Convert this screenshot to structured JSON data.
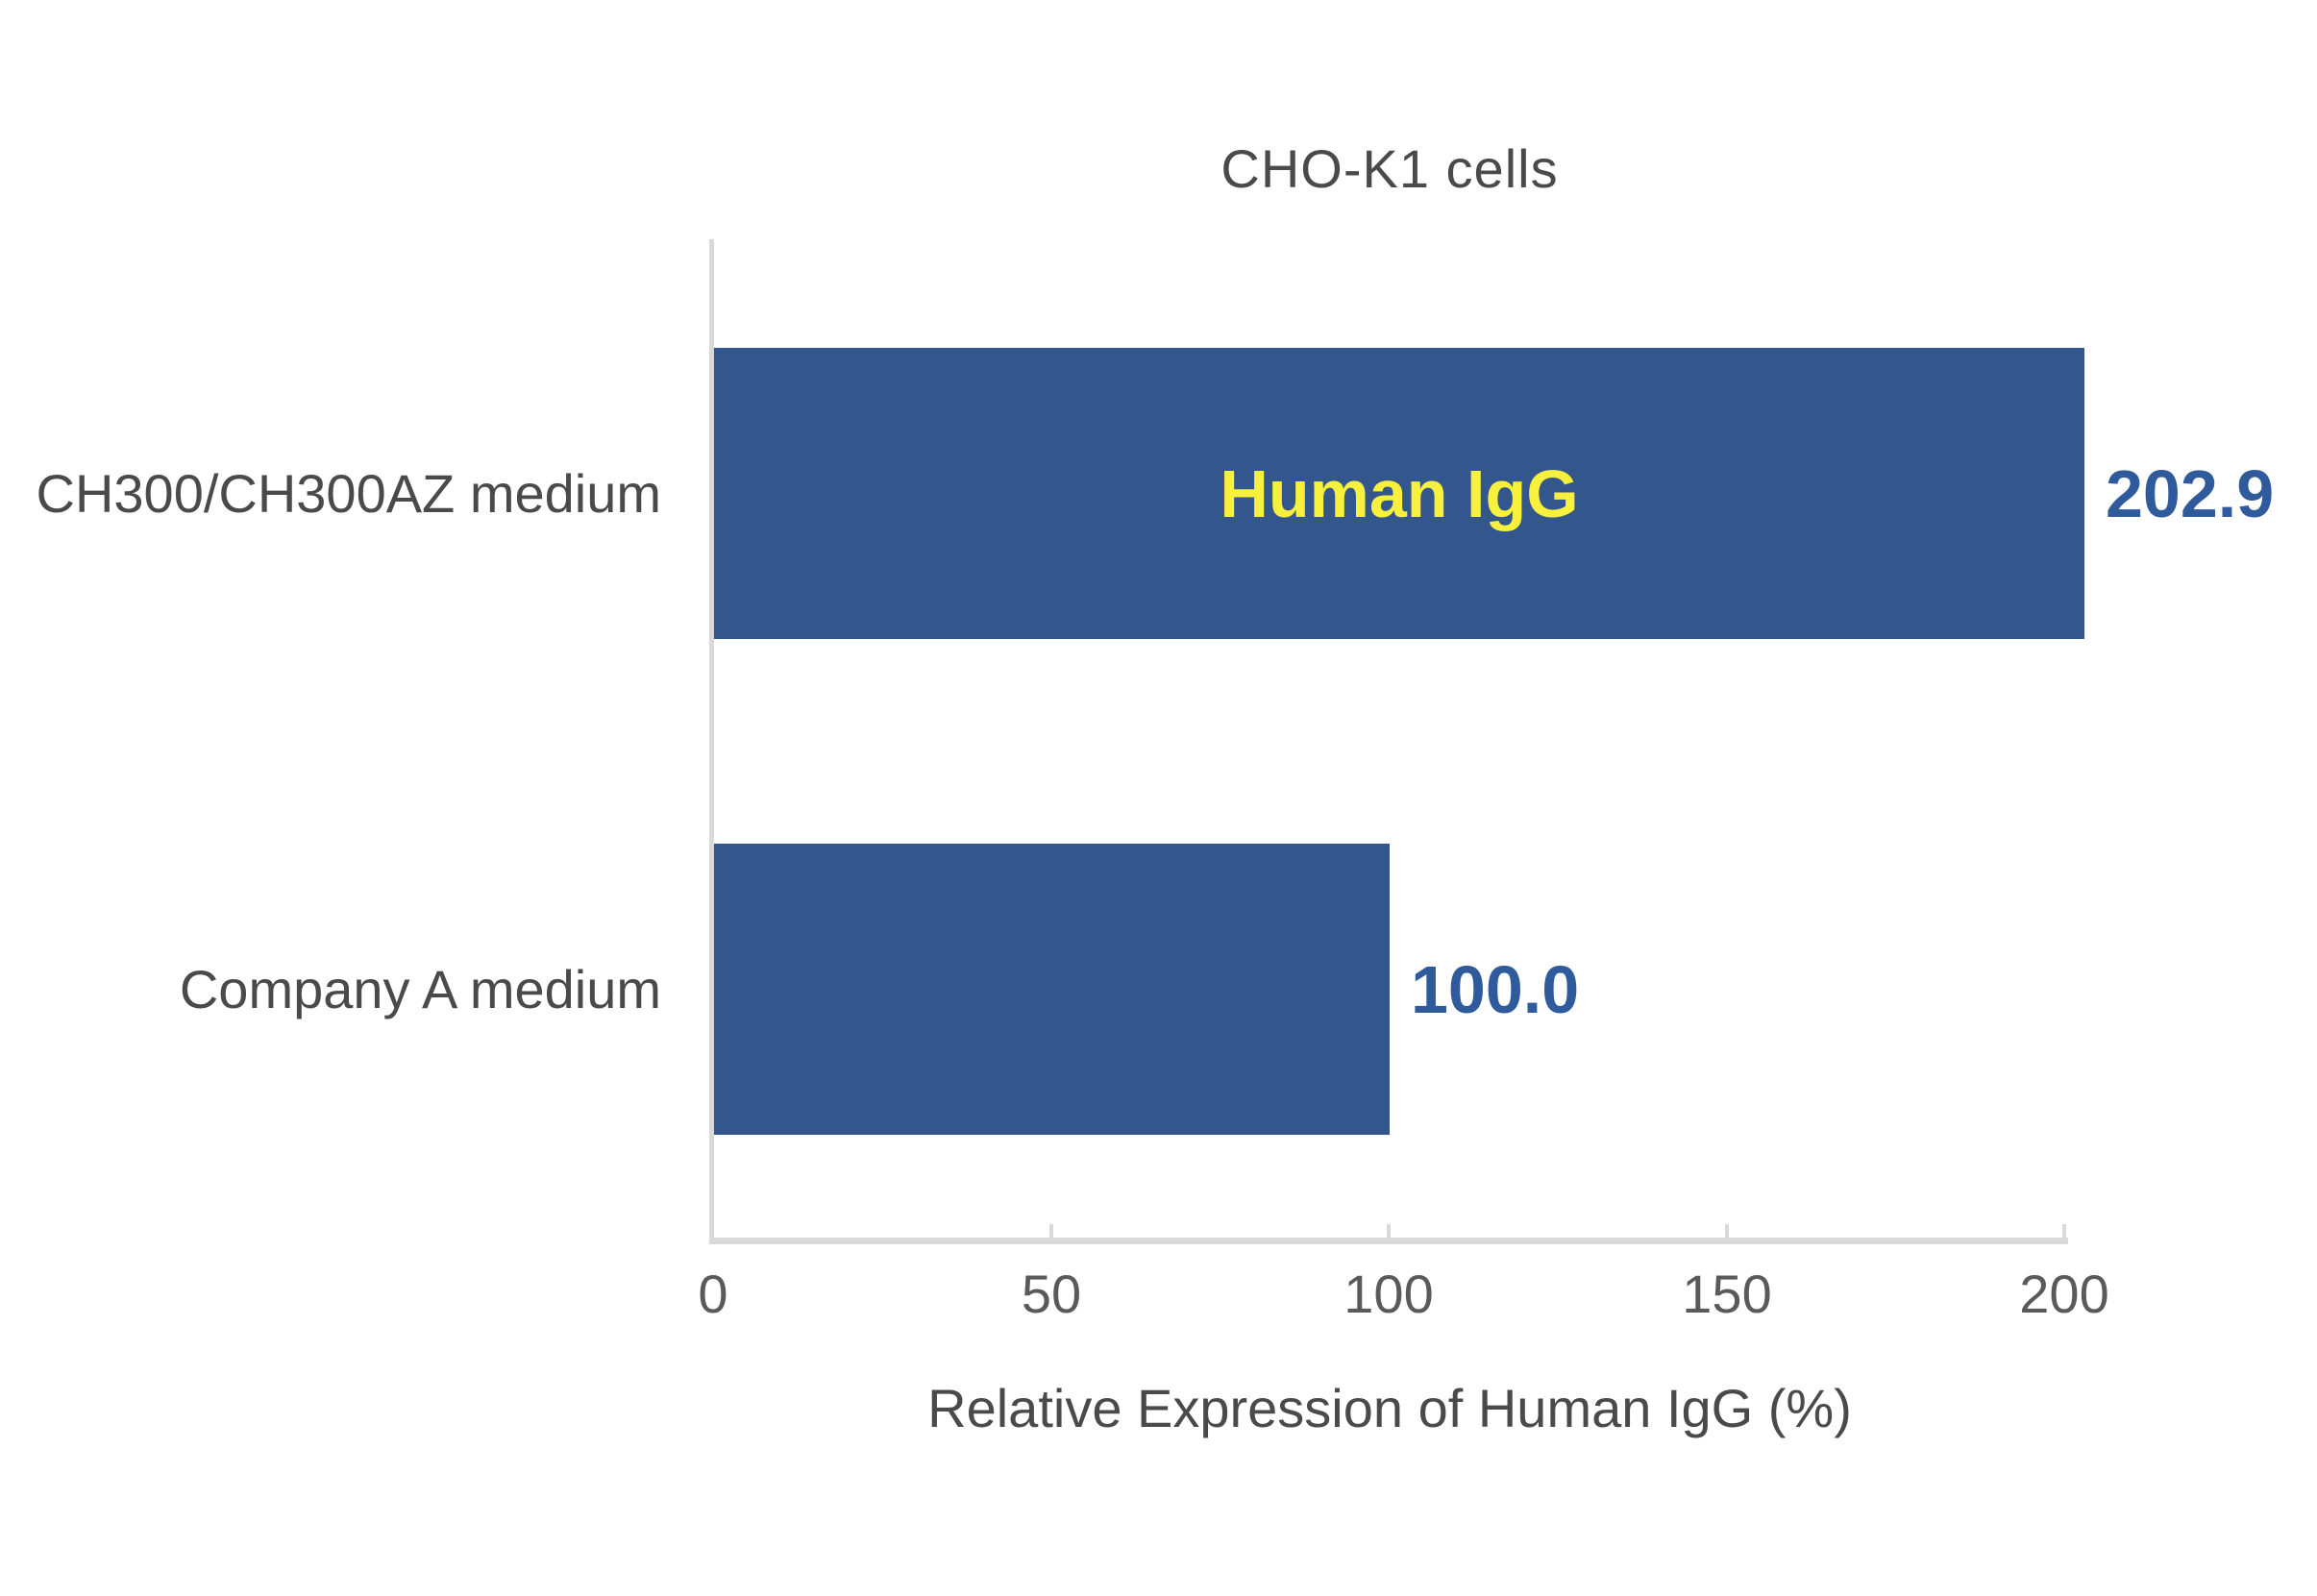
{
  "colors": {
    "bar": "#33568C",
    "value_text": "#2F5B9D",
    "annotation_yellow": "#F7F13E",
    "label_gray": "#4A4A4A",
    "tick_gray": "#5A5A5A",
    "axis_gray": "#D9D9D9",
    "background": "#FFFFFF"
  },
  "chart_data": {
    "type": "bar",
    "orientation": "horizontal",
    "title": "CHO-K1 cells",
    "xlabel": "Relative Expression of Human IgG (%)",
    "xlim": [
      0,
      200
    ],
    "x_ticks": [
      0,
      50,
      100,
      150,
      200
    ],
    "x_tick_labels": [
      "0",
      "50",
      "100",
      "150",
      "200"
    ],
    "grid": false,
    "legend": "none",
    "categories": [
      "CH300/CH300AZ medium",
      "Company A medium"
    ],
    "values": [
      202.9,
      100.0
    ],
    "bars": [
      {
        "slug": "ch300-ch300az-medium",
        "category": "CH300/CH300AZ medium",
        "value": 202.9,
        "value_label": "202.9",
        "annotation": "Human IgG"
      },
      {
        "slug": "company-a-medium",
        "category": "Company A medium",
        "value": 100.0,
        "value_label": "100.0",
        "annotation": ""
      }
    ]
  }
}
